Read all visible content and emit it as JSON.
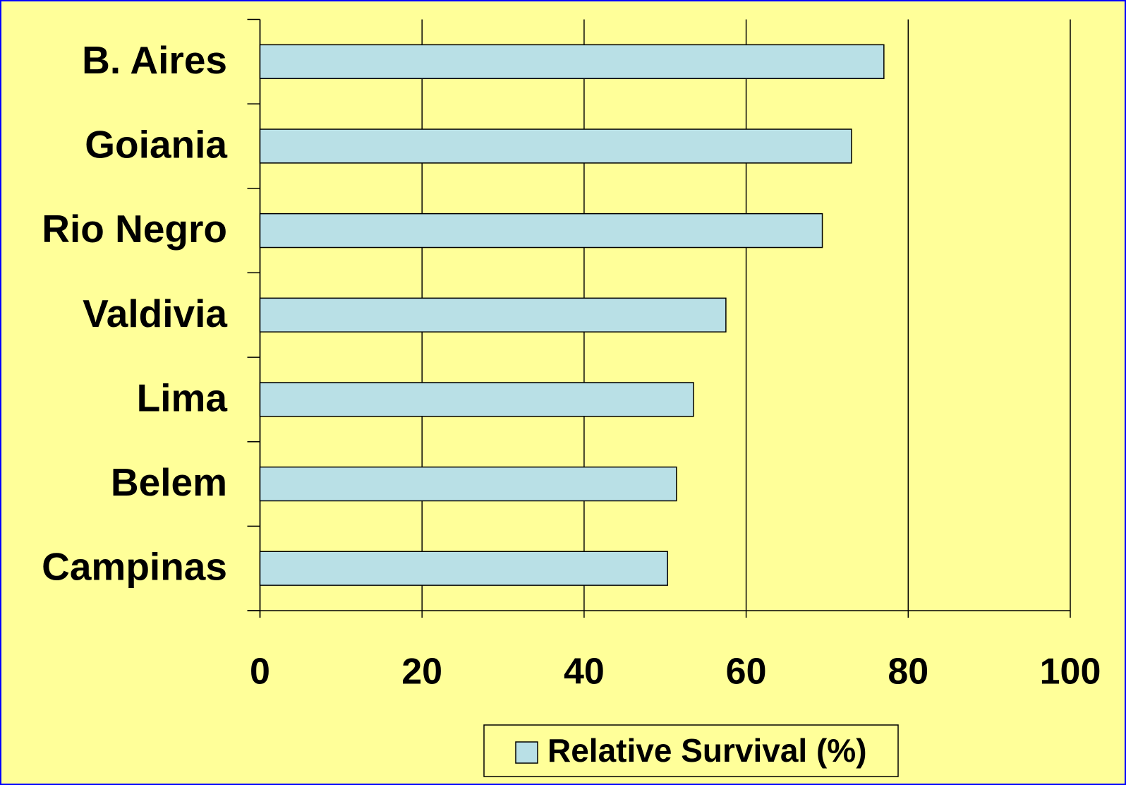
{
  "chart_data": {
    "type": "bar",
    "orientation": "horizontal",
    "categories": [
      "B. Aires",
      "Goiania",
      "Rio Negro",
      "Valdivia",
      "Lima",
      "Belem",
      "Campinas"
    ],
    "series": [
      {
        "name": "Relative Survival (%)",
        "color": "#b9e0e6",
        "values": [
          77.0,
          73.0,
          69.4,
          57.5,
          53.5,
          51.4,
          50.3
        ]
      }
    ],
    "xlim": [
      0,
      100
    ],
    "xticks": [
      0,
      20,
      40,
      60,
      80,
      100
    ],
    "grid": true,
    "legend": "bottom"
  }
}
